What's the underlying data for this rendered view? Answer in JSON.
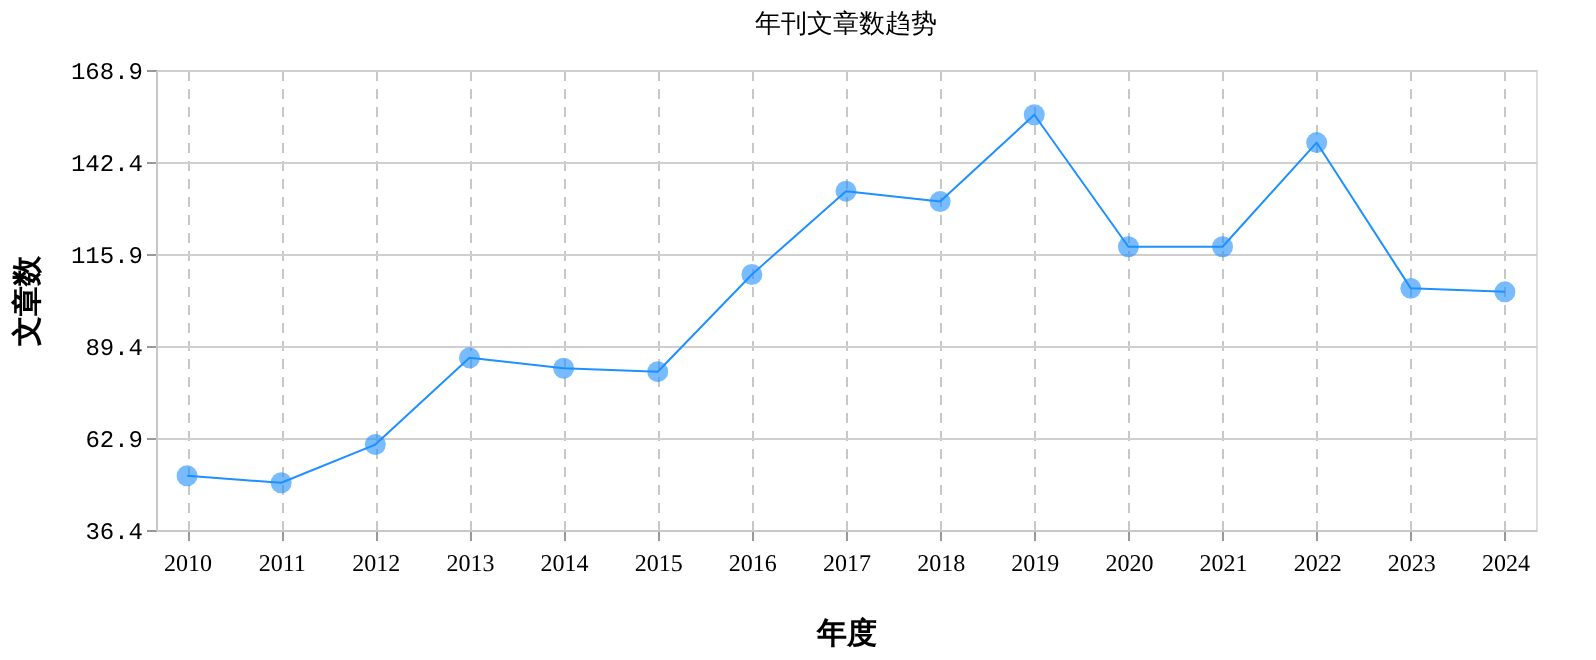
{
  "chart_data": {
    "type": "line",
    "title": "年刊文章数趋势",
    "xlabel": "年度",
    "ylabel": "文章数",
    "categories": [
      "2010",
      "2011",
      "2012",
      "2013",
      "2014",
      "2015",
      "2016",
      "2017",
      "2018",
      "2019",
      "2020",
      "2021",
      "2022",
      "2023",
      "2024"
    ],
    "series": [
      {
        "color": "#1e90ff",
        "values": [
          52,
          50,
          61,
          86,
          83,
          82,
          110,
          134,
          131,
          156,
          118,
          118,
          148,
          106,
          105
        ]
      }
    ],
    "ylim": [
      36.4,
      168.9
    ],
    "yticks": [
      36.4,
      62.9,
      89.4,
      115.9,
      142.4,
      168.9
    ],
    "grid": true,
    "marker": "circle",
    "line_style": "solid",
    "legend": false
  }
}
